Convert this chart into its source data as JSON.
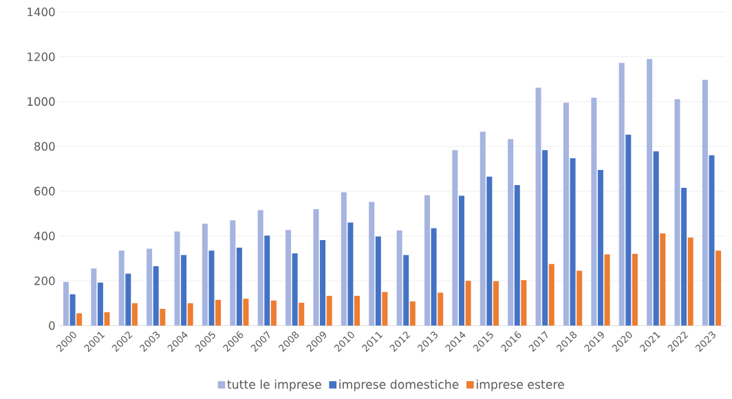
{
  "chart_data": {
    "type": "bar",
    "categories": [
      "2000",
      "2001",
      "2002",
      "2003",
      "2004",
      "2005",
      "2006",
      "2007",
      "2008",
      "2009",
      "2010",
      "2011",
      "2012",
      "2013",
      "2014",
      "2015",
      "2016",
      "2017",
      "2018",
      "2019",
      "2020",
      "2021",
      "2022",
      "2023"
    ],
    "series": [
      {
        "name": "tutte le imprese",
        "color": "#a5b4e0",
        "values": [
          195,
          255,
          335,
          343,
          420,
          455,
          470,
          515,
          427,
          520,
          595,
          552,
          425,
          582,
          783,
          865,
          832,
          1062,
          995,
          1017,
          1172,
          1190,
          1010,
          1097
        ]
      },
      {
        "name": "imprese domestiche",
        "color": "#4472c4",
        "values": [
          140,
          192,
          232,
          265,
          315,
          335,
          348,
          402,
          323,
          382,
          460,
          398,
          315,
          435,
          580,
          665,
          627,
          783,
          747,
          695,
          852,
          778,
          615,
          760
        ]
      },
      {
        "name": "imprese estere",
        "color": "#ed7d31",
        "values": [
          55,
          60,
          100,
          75,
          100,
          115,
          120,
          112,
          102,
          133,
          133,
          150,
          108,
          147,
          200,
          198,
          203,
          275,
          245,
          318,
          320,
          412,
          393,
          335
        ]
      }
    ],
    "ylim": [
      0,
      1400
    ],
    "yticks": [
      0,
      200,
      400,
      600,
      800,
      1000,
      1200,
      1400
    ],
    "grid": "y",
    "legend": "bottom"
  }
}
